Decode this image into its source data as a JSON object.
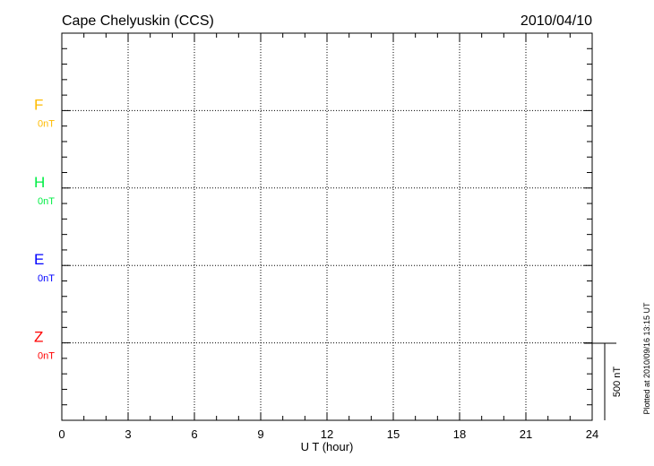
{
  "chart_data": {
    "type": "line",
    "title": "Cape Chelyuskin (CCS)",
    "date": "2010/04/10",
    "xlabel": "U T (hour)",
    "xlim": [
      0,
      24
    ],
    "xticks": [
      "0",
      "3",
      "6",
      "9",
      "12",
      "15",
      "18",
      "21",
      "24"
    ],
    "grid": true,
    "series": [
      {
        "name": "F",
        "baseline_label": "0nT",
        "color": "#ffbb00",
        "values": []
      },
      {
        "name": "H",
        "baseline_label": "0nT",
        "color": "#00ee44",
        "values": []
      },
      {
        "name": "E",
        "baseline_label": "0nT",
        "color": "#0000ff",
        "values": []
      },
      {
        "name": "Z",
        "baseline_label": "0nT",
        "color": "#ff0000",
        "values": []
      }
    ],
    "scale_bar_label": "500 nT",
    "footer": "Plotted at 2010/09/16 13:15 UT"
  }
}
